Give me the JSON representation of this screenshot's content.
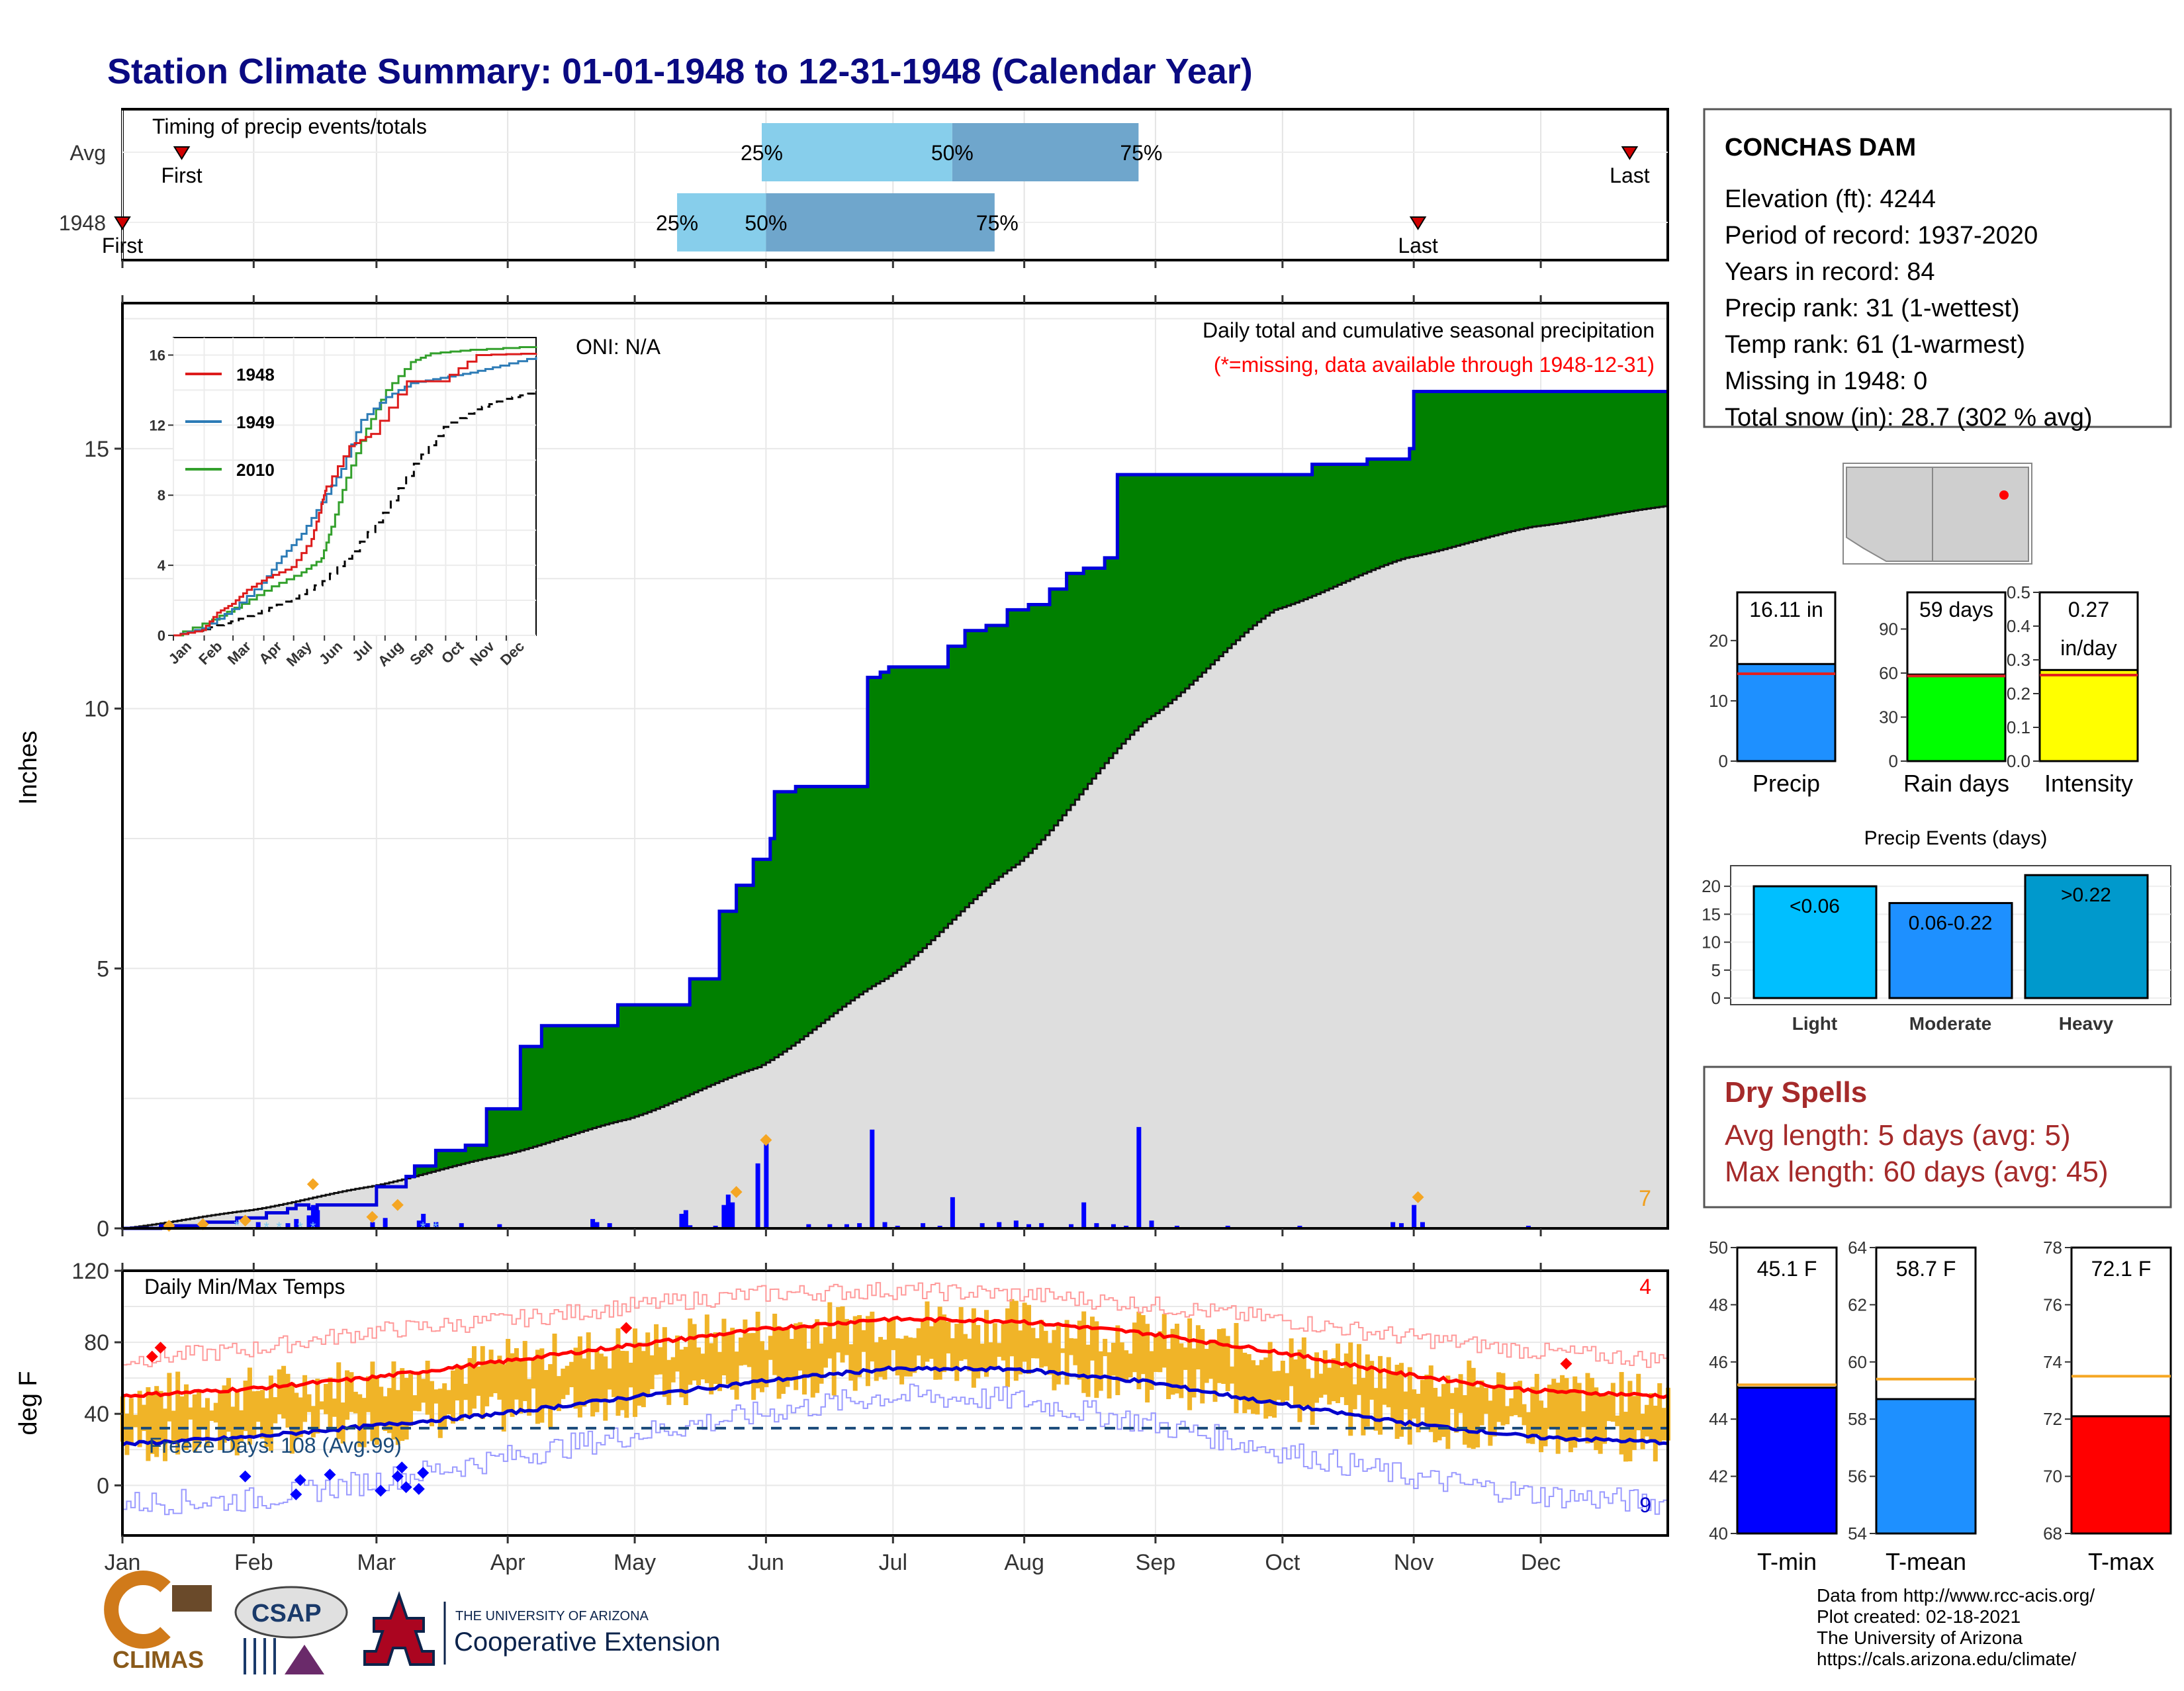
{
  "title": "Station Climate Summary: 01-01-1948 to 12-31-1948 (Calendar Year)",
  "colors": {
    "title": "#0a0a82",
    "precip_green": "#008000",
    "cum_line": "#0000dd",
    "avg_fill": "#dedede",
    "bar_daily": "#0000ff",
    "temp_band": "#f0b428",
    "tmax_avg": "#ff0000",
    "tmin_avg": "#0000cc",
    "light_blue": "#87ceeb",
    "mid_blue": "#6fa6cc",
    "dry_red": "#a52a2a",
    "missing_red": "#ff0000"
  },
  "timing_panel": {
    "heading": "Timing of precip events/totals",
    "rows": [
      {
        "label": "Avg",
        "q25": "25%",
        "q50": "50%",
        "q75": "75%",
        "first": "First",
        "last": "Last",
        "first_day": 15,
        "last_day": 357,
        "q25_day": 152,
        "q50_day": 197,
        "q75_day": 241
      },
      {
        "label": "1948",
        "q25": "25%",
        "q50": "50%",
        "q75": "75%",
        "first": "First",
        "last": "Last",
        "first_day": 1,
        "last_day": 307,
        "q25_day": 132,
        "q50_day": 153,
        "q75_day": 207
      }
    ]
  },
  "station": {
    "name": "CONCHAS DAM",
    "lines": [
      "Elevation (ft): 4244",
      "Period of record: 1937-2020",
      "Years in record: 84",
      "Precip rank: 31 (1-wettest)",
      "Temp rank: 61 (1-warmest)",
      "Missing in 1948: 0",
      "Total snow (in): 28.7 (302 % avg)"
    ]
  },
  "precip_panel": {
    "ylabel": "Inches",
    "yticks": [
      "0",
      "5",
      "10",
      "15"
    ],
    "subtitle": "Daily total and cumulative seasonal precipitation",
    "missing_note": "(*=missing, data available through 1948-12-31)",
    "oni": "ONI: N/A",
    "corner_count": "7",
    "months": [
      "Jan",
      "Feb",
      "Mar",
      "Apr",
      "May",
      "Jun",
      "Jul",
      "Aug",
      "Sep",
      "Oct",
      "Nov",
      "Dec"
    ],
    "cum_steps": [
      [
        1,
        0
      ],
      [
        10,
        0.05
      ],
      [
        20,
        0.12
      ],
      [
        28,
        0.2
      ],
      [
        35,
        0.3
      ],
      [
        40,
        0.38
      ],
      [
        42,
        0.45
      ],
      [
        45,
        0.38
      ],
      [
        47,
        0.45
      ],
      [
        60,
        0.45
      ],
      [
        61,
        0.8
      ],
      [
        68,
        1.0
      ],
      [
        70,
        1.2
      ],
      [
        75,
        1.5
      ],
      [
        82,
        1.6
      ],
      [
        87,
        2.3
      ],
      [
        95,
        3.5
      ],
      [
        100,
        3.9
      ],
      [
        117,
        3.9
      ],
      [
        118,
        4.3
      ],
      [
        130,
        4.3
      ],
      [
        135,
        4.8
      ],
      [
        140,
        4.8
      ],
      [
        142,
        6.1
      ],
      [
        146,
        6.6
      ],
      [
        150,
        7.1
      ],
      [
        154,
        7.5
      ],
      [
        155,
        8.4
      ],
      [
        160,
        8.5
      ],
      [
        175,
        8.5
      ],
      [
        177,
        10.6
      ],
      [
        180,
        10.7
      ],
      [
        182,
        10.8
      ],
      [
        190,
        10.8
      ],
      [
        196,
        11.2
      ],
      [
        200,
        11.5
      ],
      [
        205,
        11.6
      ],
      [
        210,
        11.9
      ],
      [
        215,
        12.0
      ],
      [
        220,
        12.3
      ],
      [
        224,
        12.6
      ],
      [
        228,
        12.7
      ],
      [
        233,
        12.9
      ],
      [
        236,
        14.5
      ],
      [
        270,
        14.5
      ],
      [
        282,
        14.7
      ],
      [
        290,
        14.7
      ],
      [
        295,
        14.8
      ],
      [
        300,
        14.8
      ],
      [
        305,
        15.0
      ],
      [
        306,
        16.1
      ],
      [
        366,
        16.1
      ]
    ],
    "cum_avg_points": [
      [
        1,
        0
      ],
      [
        31,
        0.35
      ],
      [
        59,
        0.8
      ],
      [
        90,
        1.4
      ],
      [
        120,
        2.1
      ],
      [
        151,
        3.1
      ],
      [
        181,
        4.8
      ],
      [
        212,
        7.0
      ],
      [
        243,
        9.8
      ],
      [
        273,
        11.9
      ],
      [
        304,
        12.9
      ],
      [
        334,
        13.5
      ],
      [
        366,
        13.9
      ]
    ],
    "daily_bars": [
      [
        33,
        0.12
      ],
      [
        40,
        0.1
      ],
      [
        42,
        0.18
      ],
      [
        45,
        0.25
      ],
      [
        46,
        0.45
      ],
      [
        47,
        0.35
      ],
      [
        60,
        0.12
      ],
      [
        63,
        0.2
      ],
      [
        71,
        0.15
      ],
      [
        72,
        0.28
      ],
      [
        73,
        0.1
      ],
      [
        75,
        0.12
      ],
      [
        81,
        0.1
      ],
      [
        90,
        0.08
      ],
      [
        112,
        0.18
      ],
      [
        113,
        0.12
      ],
      [
        116,
        0.1
      ],
      [
        133,
        0.28
      ],
      [
        134,
        0.35
      ],
      [
        135,
        0.06
      ],
      [
        141,
        0.05
      ],
      [
        143,
        0.45
      ],
      [
        144,
        0.65
      ],
      [
        145,
        0.5
      ],
      [
        151,
        1.25
      ],
      [
        153,
        1.65
      ],
      [
        163,
        0.08
      ],
      [
        168,
        0.08
      ],
      [
        172,
        0.08
      ],
      [
        175,
        0.1
      ],
      [
        178,
        1.9
      ],
      [
        181,
        0.12
      ],
      [
        184,
        0.05
      ],
      [
        190,
        0.1
      ],
      [
        194,
        0.05
      ],
      [
        197,
        0.6
      ],
      [
        204,
        0.1
      ],
      [
        208,
        0.12
      ],
      [
        212,
        0.15
      ],
      [
        215,
        0.08
      ],
      [
        218,
        0.1
      ],
      [
        225,
        0.08
      ],
      [
        228,
        0.5
      ],
      [
        231,
        0.1
      ],
      [
        235,
        0.08
      ],
      [
        238,
        0.05
      ],
      [
        241,
        1.95
      ],
      [
        244,
        0.15
      ],
      [
        250,
        0.05
      ],
      [
        262,
        0.05
      ],
      [
        279,
        0.05
      ],
      [
        301,
        0.12
      ],
      [
        303,
        0.1
      ],
      [
        306,
        0.45
      ],
      [
        308,
        0.12
      ],
      [
        333,
        0.05
      ]
    ],
    "snow_markers": [
      [
        12,
        0.05
      ],
      [
        20,
        0.08
      ],
      [
        30,
        0.15
      ],
      [
        46,
        0.85
      ],
      [
        60,
        0.22
      ],
      [
        66,
        0.45
      ],
      [
        153,
        1.7
      ],
      [
        146,
        0.7
      ],
      [
        307,
        0.6
      ]
    ]
  },
  "inset": {
    "legend": [
      "1948",
      "1949",
      "2010"
    ],
    "colors": [
      "#dd1c1c",
      "#2c7bb6",
      "#33a02c"
    ],
    "yticks": [
      "0",
      "4",
      "8",
      "12",
      "16"
    ],
    "months": [
      "Jan",
      "Feb",
      "Mar",
      "Apr",
      "May",
      "Jun",
      "Jul",
      "Aug",
      "Sep",
      "Oct",
      "Nov",
      "Dec"
    ],
    "series_1948": [
      [
        1,
        0
      ],
      [
        30,
        0.3
      ],
      [
        45,
        1.3
      ],
      [
        60,
        1.8
      ],
      [
        75,
        2.6
      ],
      [
        95,
        3.3
      ],
      [
        120,
        3.9
      ],
      [
        140,
        5.5
      ],
      [
        150,
        7.5
      ],
      [
        155,
        8.5
      ],
      [
        178,
        10.8
      ],
      [
        200,
        11.5
      ],
      [
        236,
        14.5
      ],
      [
        270,
        14.5
      ],
      [
        306,
        16.0
      ],
      [
        366,
        16.1
      ]
    ],
    "series_1949": [
      [
        1,
        0
      ],
      [
        30,
        0.4
      ],
      [
        60,
        1.5
      ],
      [
        90,
        3.0
      ],
      [
        110,
        4.5
      ],
      [
        130,
        5.8
      ],
      [
        150,
        7.6
      ],
      [
        170,
        9.5
      ],
      [
        190,
        12.3
      ],
      [
        215,
        13.6
      ],
      [
        240,
        14.4
      ],
      [
        270,
        14.7
      ],
      [
        300,
        15.0
      ],
      [
        330,
        15.4
      ],
      [
        366,
        15.9
      ]
    ],
    "series_2010": [
      [
        1,
        0
      ],
      [
        40,
        0.9
      ],
      [
        70,
        1.8
      ],
      [
        100,
        2.8
      ],
      [
        130,
        3.6
      ],
      [
        150,
        4.4
      ],
      [
        160,
        6.2
      ],
      [
        175,
        9.0
      ],
      [
        195,
        11.8
      ],
      [
        215,
        14.0
      ],
      [
        240,
        15.6
      ],
      [
        260,
        16.1
      ],
      [
        300,
        16.3
      ],
      [
        366,
        16.5
      ]
    ],
    "avg": [
      [
        1,
        0
      ],
      [
        31,
        0.35
      ],
      [
        59,
        0.8
      ],
      [
        90,
        1.4
      ],
      [
        120,
        2.1
      ],
      [
        151,
        3.1
      ],
      [
        181,
        4.8
      ],
      [
        212,
        7.0
      ],
      [
        243,
        9.8
      ],
      [
        273,
        11.9
      ],
      [
        304,
        12.9
      ],
      [
        334,
        13.5
      ],
      [
        366,
        13.9
      ]
    ]
  },
  "gauges": {
    "items": [
      {
        "name": "Precip",
        "value": 16.11,
        "value_label": "16.11 in",
        "avg": 14.5,
        "max": 28,
        "ticks": [
          "0",
          "10",
          "20"
        ],
        "tickvals": [
          0,
          10,
          20
        ],
        "color": "#1e90ff"
      },
      {
        "name": "Rain days",
        "value": 59,
        "value_label": "59 days",
        "avg": 58,
        "max": 115,
        "ticks": [
          "0",
          "30",
          "60",
          "90"
        ],
        "tickvals": [
          0,
          30,
          60,
          90
        ],
        "color": "#00ff00"
      },
      {
        "name": "Intensity",
        "value": 0.27,
        "value_label": "0.27 in/day",
        "avg": 0.255,
        "max": 0.5,
        "ticks": [
          "0.0",
          "0.1",
          "0.2",
          "0.3",
          "0.4",
          "0.5"
        ],
        "tickvals": [
          0,
          0.1,
          0.2,
          0.3,
          0.4,
          0.5
        ],
        "color": "#ffff00"
      }
    ],
    "value_line1": [
      "16.11 in",
      "59 days",
      "0.27"
    ],
    "value_line2": [
      "",
      "",
      "in/day"
    ]
  },
  "events_panel": {
    "title": "Precip Events (days)",
    "yticks": [
      "0",
      "5",
      "10",
      "15",
      "20"
    ],
    "categories": [
      "Light",
      "Moderate",
      "Heavy"
    ],
    "labels": [
      "<0.06",
      "0.06-0.22",
      ">0.22"
    ],
    "values": [
      20,
      17,
      22
    ],
    "colors": [
      "#00bfff",
      "#1e90ff",
      "#0099cc"
    ]
  },
  "dry_spells": {
    "title": "Dry Spells",
    "avg_line": "Avg length: 5 days (avg: 5)",
    "max_line": "Max length: 60 days (avg: 45)"
  },
  "temp_panel": {
    "title": "Daily Min/Max Temps",
    "ylabel": "deg F",
    "yticks": [
      "0",
      "40",
      "80",
      "120"
    ],
    "months": [
      "Jan",
      "Feb",
      "Mar",
      "Apr",
      "May",
      "Jun",
      "Jul",
      "Aug",
      "Sep",
      "Oct",
      "Nov",
      "Dec"
    ],
    "freeze_label": "Freeze Days: 108 (Avg:99)",
    "freeze_line": 32,
    "count_top": "4",
    "count_bottom": "9",
    "tmax_avg": [
      [
        1,
        50
      ],
      [
        31,
        54
      ],
      [
        59,
        60
      ],
      [
        90,
        69
      ],
      [
        120,
        78
      ],
      [
        151,
        87
      ],
      [
        181,
        93
      ],
      [
        212,
        92
      ],
      [
        243,
        85
      ],
      [
        273,
        75
      ],
      [
        304,
        62
      ],
      [
        334,
        53
      ],
      [
        366,
        50
      ]
    ],
    "tmin_avg": [
      [
        1,
        23
      ],
      [
        31,
        27
      ],
      [
        59,
        33
      ],
      [
        90,
        40
      ],
      [
        120,
        49
      ],
      [
        151,
        58
      ],
      [
        181,
        65
      ],
      [
        212,
        65
      ],
      [
        243,
        58
      ],
      [
        273,
        46
      ],
      [
        304,
        35
      ],
      [
        334,
        27
      ],
      [
        366,
        24
      ]
    ],
    "rec_high": [
      [
        1,
        70
      ],
      [
        31,
        76
      ],
      [
        59,
        86
      ],
      [
        90,
        92
      ],
      [
        120,
        100
      ],
      [
        151,
        107
      ],
      [
        181,
        109
      ],
      [
        212,
        107
      ],
      [
        243,
        101
      ],
      [
        273,
        93
      ],
      [
        304,
        83
      ],
      [
        334,
        75
      ],
      [
        366,
        70
      ]
    ],
    "rec_low": [
      [
        1,
        -10
      ],
      [
        31,
        -8
      ],
      [
        59,
        2
      ],
      [
        90,
        15
      ],
      [
        120,
        28
      ],
      [
        151,
        40
      ],
      [
        181,
        50
      ],
      [
        212,
        48
      ],
      [
        243,
        35
      ],
      [
        273,
        20
      ],
      [
        304,
        5
      ],
      [
        334,
        -5
      ],
      [
        366,
        -10
      ]
    ],
    "red_markers": [
      [
        8,
        72
      ],
      [
        10,
        77
      ],
      [
        120,
        88
      ],
      [
        342,
        68
      ]
    ],
    "blue_markers": [
      [
        30,
        5
      ],
      [
        42,
        -5
      ],
      [
        43,
        3
      ],
      [
        50,
        6
      ],
      [
        62,
        -3
      ],
      [
        66,
        5
      ],
      [
        67,
        10
      ],
      [
        68,
        -1
      ],
      [
        71,
        -2
      ],
      [
        72,
        7
      ]
    ]
  },
  "temp_gauges": {
    "items": [
      {
        "name": "T-min",
        "value": 45.1,
        "value_label": "45.1 F",
        "avg": 45.2,
        "min": 40,
        "max": 50,
        "ticks": [
          "40",
          "42",
          "44",
          "46",
          "48",
          "50"
        ],
        "tickvals": [
          40,
          42,
          44,
          46,
          48,
          50
        ],
        "color": "#0000ff"
      },
      {
        "name": "T-mean",
        "value": 58.7,
        "value_label": "58.7 F",
        "avg": 59.4,
        "min": 54,
        "max": 64,
        "ticks": [
          "54",
          "56",
          "58",
          "60",
          "62",
          "64"
        ],
        "tickvals": [
          54,
          56,
          58,
          60,
          62,
          64
        ],
        "color": "#1e90ff"
      },
      {
        "name": "T-max",
        "value": 72.1,
        "value_label": "72.1 F",
        "avg": 73.5,
        "min": 68,
        "max": 78,
        "ticks": [
          "68",
          "70",
          "72",
          "74",
          "76",
          "78"
        ],
        "tickvals": [
          68,
          70,
          72,
          74,
          76,
          78
        ],
        "color": "#ff0000"
      }
    ]
  },
  "logos": {
    "climas": "CLIMAS",
    "csap": "CSAP",
    "ua_top": "THE UNIVERSITY OF ARIZONA",
    "ua_bottom": "Cooperative Extension"
  },
  "footer": [
    "Data from http://www.rcc-acis.org/",
    "Plot created: 02-18-2021",
    "The University of Arizona",
    "https://cals.arizona.edu/climate/"
  ]
}
